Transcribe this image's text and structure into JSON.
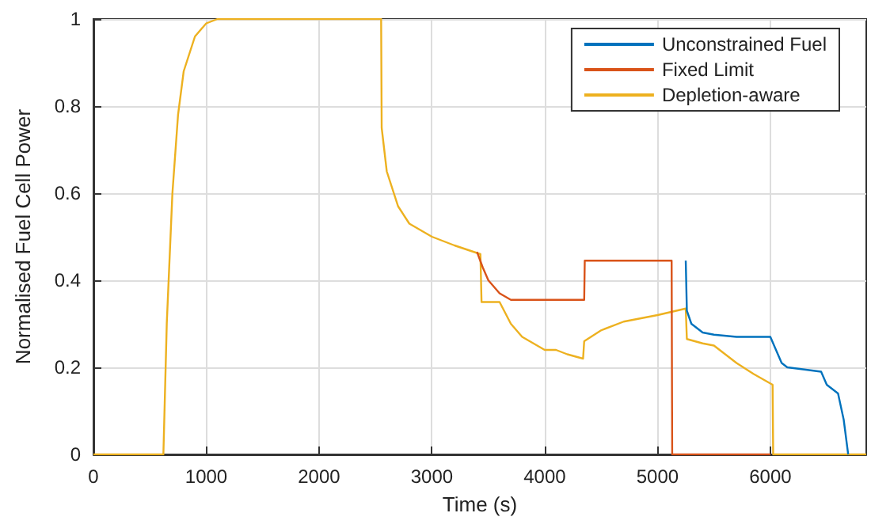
{
  "chart_data": {
    "type": "line",
    "xlabel": "Time (s)",
    "ylabel": "Normalised Fuel Cell Power",
    "xlim": [
      0,
      6850
    ],
    "ylim": [
      0,
      1
    ],
    "xticks": [
      0,
      1000,
      2000,
      3000,
      4000,
      5000,
      6000
    ],
    "yticks": [
      0,
      0.2,
      0.4,
      0.6,
      0.8,
      1
    ],
    "grid": true,
    "legend": "top right",
    "marker": "none",
    "line_style": "solid",
    "series": [
      {
        "name": "Unconstrained Fuel",
        "color": "#0072bd",
        "x": [
          5250,
          5260,
          5300,
          5400,
          5500,
          5700,
          6000,
          6050,
          6100,
          6150,
          6450,
          6500,
          6600,
          6650,
          6690
        ],
        "values": [
          0.445,
          0.33,
          0.3,
          0.28,
          0.275,
          0.27,
          0.27,
          0.24,
          0.21,
          0.2,
          0.19,
          0.16,
          0.14,
          0.08,
          0
        ]
      },
      {
        "name": "Fixed Limit",
        "color": "#d95319",
        "x": [
          3400,
          3450,
          3500,
          3600,
          3700,
          4350,
          4355,
          5125,
          5130,
          6000
        ],
        "values": [
          0.465,
          0.43,
          0.4,
          0.37,
          0.355,
          0.355,
          0.445,
          0.445,
          0,
          0
        ]
      },
      {
        "name": "Depletion-aware",
        "color": "#edb120",
        "x": [
          0,
          620,
          650,
          700,
          750,
          800,
          900,
          1000,
          1100,
          2550,
          2555,
          2600,
          2700,
          2800,
          3000,
          3200,
          3430,
          3440,
          3600,
          3700,
          3800,
          4000,
          4100,
          4200,
          4340,
          4350,
          4500,
          4700,
          5000,
          5250,
          5260,
          5400,
          5500,
          5700,
          5850,
          6020,
          6025,
          6850
        ],
        "values": [
          0,
          0,
          0.3,
          0.6,
          0.78,
          0.88,
          0.96,
          0.99,
          1,
          1,
          0.75,
          0.65,
          0.57,
          0.53,
          0.5,
          0.48,
          0.46,
          0.35,
          0.35,
          0.3,
          0.27,
          0.24,
          0.24,
          0.23,
          0.22,
          0.26,
          0.285,
          0.305,
          0.32,
          0.335,
          0.265,
          0.255,
          0.25,
          0.21,
          0.185,
          0.16,
          0,
          0
        ]
      }
    ]
  }
}
